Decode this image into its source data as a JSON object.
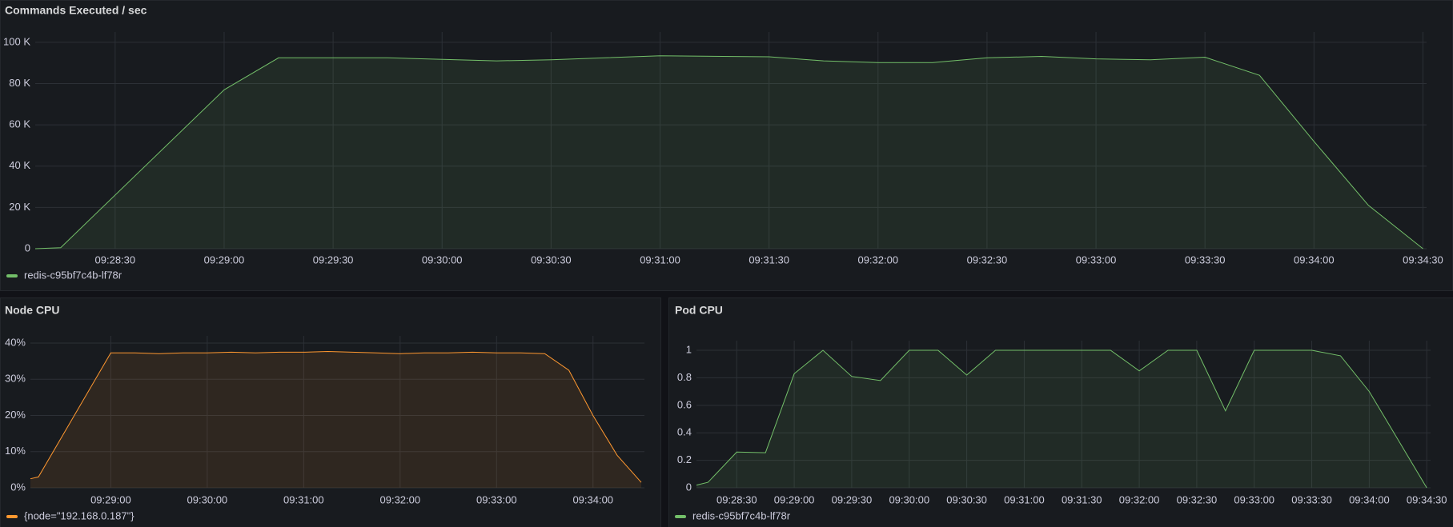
{
  "chart_data": [
    {
      "type": "line",
      "title": "Commands Executed / sec",
      "x": [
        "09:28:08",
        "09:28:15",
        "09:29:00",
        "09:29:15",
        "09:29:45",
        "09:30:15",
        "09:30:30",
        "09:31:00",
        "09:31:30",
        "09:31:45",
        "09:32:00",
        "09:32:15",
        "09:32:30",
        "09:32:45",
        "09:33:00",
        "09:33:15",
        "09:33:30",
        "09:33:45",
        "09:34:00",
        "09:34:15",
        "09:34:30"
      ],
      "series": [
        {
          "name": "redis-c95bf7c4b-lf78r",
          "color": "#73bf69",
          "values": [
            0,
            500,
            77000,
            92500,
            92500,
            91000,
            91500,
            93500,
            93000,
            91000,
            90200,
            90200,
            92500,
            93200,
            92000,
            91500,
            92800,
            84000,
            52000,
            21000,
            0
          ]
        }
      ],
      "xlim": [
        "09:28:08",
        "09:34:31"
      ],
      "xticks": [
        "09:28:30",
        "09:29:00",
        "09:29:30",
        "09:30:00",
        "09:30:30",
        "09:31:00",
        "09:31:30",
        "09:32:00",
        "09:32:30",
        "09:33:00",
        "09:33:30",
        "09:34:00",
        "09:34:30"
      ],
      "ylim": [
        0,
        105000
      ],
      "yticks": [
        0,
        {
          "value": 20000,
          "label": "20 K"
        },
        {
          "value": 40000,
          "label": "40 K"
        },
        {
          "value": 60000,
          "label": "60 K"
        },
        {
          "value": 80000,
          "label": "80 K"
        },
        {
          "value": 100000,
          "label": "100 K"
        }
      ],
      "grid": true
    },
    {
      "type": "line",
      "title": "Node CPU",
      "x": [
        "09:28:10",
        "09:28:15",
        "09:29:00",
        "09:29:15",
        "09:29:30",
        "09:29:45",
        "09:30:00",
        "09:30:15",
        "09:30:30",
        "09:30:45",
        "09:31:00",
        "09:31:15",
        "09:31:30",
        "09:31:45",
        "09:32:00",
        "09:32:15",
        "09:32:30",
        "09:32:45",
        "09:33:00",
        "09:33:15",
        "09:33:30",
        "09:33:45",
        "09:34:00",
        "09:34:15",
        "09:34:30"
      ],
      "series": [
        {
          "name": "{node=\"192.168.0.187\"}",
          "color": "#ff9830",
          "values": [
            2.5,
            3,
            37.3,
            37.3,
            37.1,
            37.3,
            37.3,
            37.5,
            37.3,
            37.5,
            37.5,
            37.7,
            37.5,
            37.3,
            37.1,
            37.3,
            37.3,
            37.5,
            37.3,
            37.3,
            37.1,
            32.5,
            20,
            9,
            1.5
          ]
        }
      ],
      "xlim": [
        "09:28:10",
        "09:34:32"
      ],
      "xticks": [
        "09:29:00",
        "09:30:00",
        "09:31:00",
        "09:32:00",
        "09:33:00",
        "09:34:00"
      ],
      "ylim": [
        0,
        42
      ],
      "yticks": [
        {
          "value": 0,
          "label": "0%"
        },
        {
          "value": 10,
          "label": "10%"
        },
        {
          "value": 20,
          "label": "20%"
        },
        {
          "value": 30,
          "label": "30%"
        },
        {
          "value": 40,
          "label": "40%"
        }
      ],
      "grid": true
    },
    {
      "type": "line",
      "title": "Pod CPU",
      "x": [
        "09:28:09",
        "09:28:15",
        "09:28:30",
        "09:28:45",
        "09:29:00",
        "09:29:15",
        "09:29:30",
        "09:29:45",
        "09:30:00",
        "09:30:15",
        "09:30:30",
        "09:30:45",
        "09:31:00",
        "09:31:15",
        "09:31:30",
        "09:31:45",
        "09:32:00",
        "09:32:15",
        "09:32:30",
        "09:32:45",
        "09:33:00",
        "09:33:15",
        "09:33:30",
        "09:33:45",
        "09:34:00",
        "09:34:15",
        "09:34:30"
      ],
      "series": [
        {
          "name": "redis-c95bf7c4b-lf78r",
          "color": "#73bf69",
          "values": [
            0.02,
            0.04,
            0.26,
            0.255,
            0.83,
            1,
            0.81,
            0.78,
            1,
            1,
            0.82,
            1,
            1,
            1,
            1,
            1,
            0.85,
            1,
            1,
            0.56,
            1,
            1,
            1,
            0.96,
            0.7,
            0.35,
            0
          ]
        }
      ],
      "xlim": [
        "09:28:09",
        "09:34:32"
      ],
      "xticks": [
        "09:28:30",
        "09:29:00",
        "09:29:30",
        "09:30:00",
        "09:30:30",
        "09:31:00",
        "09:31:30",
        "09:32:00",
        "09:32:30",
        "09:33:00",
        "09:33:30",
        "09:34:00",
        "09:34:30"
      ],
      "ylim": [
        0,
        1.07
      ],
      "yticks": [
        0,
        0.2,
        0.4,
        0.6,
        0.8,
        1
      ],
      "grid": true
    }
  ]
}
